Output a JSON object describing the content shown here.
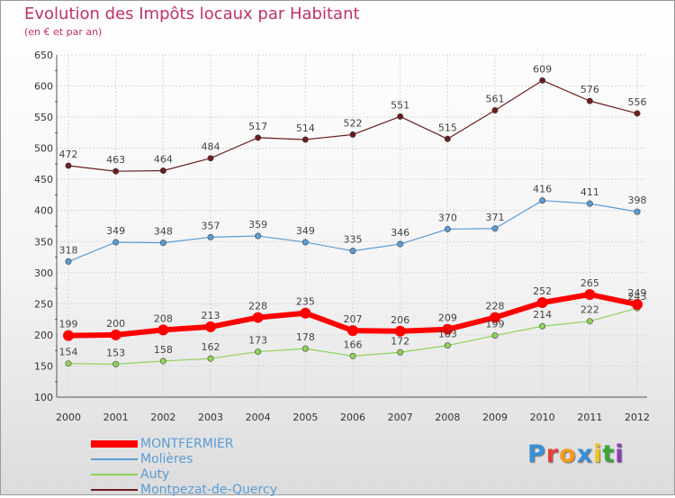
{
  "title": "Evolution des Impôts locaux par Habitant",
  "subtitle": "(en € et par an)",
  "logo_text": "Proxiti",
  "logo_colors": [
    "#3a8fd8",
    "#e83e3e",
    "#f29b1e",
    "#3a8fd8",
    "#f2c21e",
    "#38a838",
    "#8c3cb8"
  ],
  "chart_data": {
    "type": "line",
    "title": "Evolution des Impôts locaux par Habitant",
    "subtitle": "(en € et par an)",
    "xlabel": "",
    "ylabel": "",
    "x": [
      "2000",
      "2001",
      "2002",
      "2003",
      "2004",
      "2005",
      "2006",
      "2007",
      "2008",
      "2009",
      "2010",
      "2011",
      "2012"
    ],
    "ylim": [
      100,
      650
    ],
    "yticks": [
      100,
      150,
      200,
      250,
      300,
      350,
      400,
      450,
      500,
      550,
      600,
      650
    ],
    "grid": true,
    "legend_position": "bottom-left",
    "series": [
      {
        "name": "MONTFERMIER",
        "color": "#ff0000",
        "values": [
          199,
          200,
          208,
          213,
          228,
          235,
          207,
          206,
          209,
          228,
          252,
          265,
          249
        ]
      },
      {
        "name": "Molières",
        "color": "#5b9bd5",
        "values": [
          318,
          349,
          348,
          357,
          359,
          349,
          335,
          346,
          370,
          371,
          416,
          411,
          398
        ]
      },
      {
        "name": "Auty",
        "color": "#8fd35a",
        "values": [
          154,
          153,
          158,
          162,
          173,
          178,
          166,
          172,
          183,
          199,
          214,
          222,
          243
        ]
      },
      {
        "name": "Montpezat-de-Quercy",
        "color": "#6b1d1d",
        "values": [
          472,
          463,
          464,
          484,
          517,
          514,
          522,
          551,
          515,
          561,
          609,
          576,
          556
        ]
      }
    ]
  }
}
